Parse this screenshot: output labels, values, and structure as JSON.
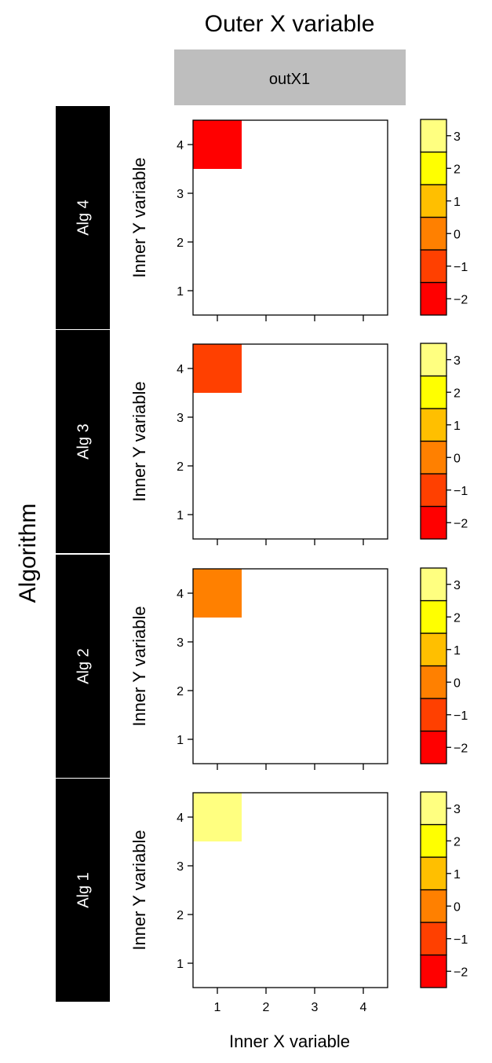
{
  "chart_data": {
    "type": "heatmap",
    "title": "Outer X variable",
    "outer_x_levels": [
      "outX1"
    ],
    "outer_y_label": "Algorithm",
    "xlabel": "Inner X variable",
    "ylabel": "Inner Y variable",
    "x_ticks": [
      "1",
      "2",
      "3",
      "4"
    ],
    "y_ticks": [
      "1",
      "2",
      "3",
      "4"
    ],
    "xlim": [
      0.5,
      4.5
    ],
    "ylim": [
      0.5,
      4.5
    ],
    "legend": {
      "breaks": [
        -2.5,
        -1.5,
        -0.5,
        0.5,
        1.5,
        2.5,
        3.5
      ],
      "colors": [
        "#FF0000",
        "#FF4000",
        "#FF8000",
        "#FFBF00",
        "#FFFF00",
        "#FFFF80"
      ],
      "ticks": [
        "3",
        "2",
        "1",
        "0",
        "−1",
        "−2"
      ],
      "tick_values": [
        3,
        2,
        1,
        0,
        -1,
        -2
      ]
    },
    "panels": [
      {
        "label": "Alg 4",
        "cells": [
          {
            "x": 1,
            "y": 4,
            "value": -2,
            "color": "#FF0000"
          }
        ]
      },
      {
        "label": "Alg 3",
        "cells": [
          {
            "x": 1,
            "y": 4,
            "value": -1,
            "color": "#FF4000"
          }
        ]
      },
      {
        "label": "Alg 2",
        "cells": [
          {
            "x": 1,
            "y": 4,
            "value": 0,
            "color": "#FF8000"
          }
        ]
      },
      {
        "label": "Alg 1",
        "cells": [
          {
            "x": 1,
            "y": 4,
            "value": 3,
            "color": "#FFFF80"
          }
        ]
      }
    ]
  }
}
